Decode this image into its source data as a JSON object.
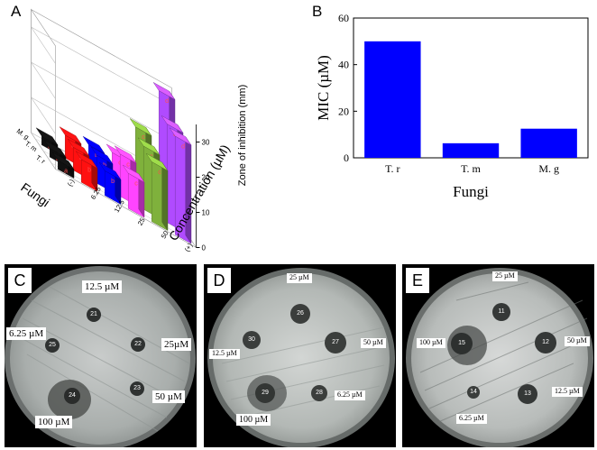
{
  "panels": {
    "A": "A",
    "B": "B",
    "C": "C",
    "D": "D",
    "E": "E"
  },
  "chart_data": [
    {
      "type": "bar",
      "panel": "A",
      "projection": "3d",
      "xlabel": "Concentration (µM)",
      "ylabel": "Fungi",
      "zlabel": "Zone of inhibition (mm)",
      "zlim": [
        0,
        35
      ],
      "z_ticks": [
        "0",
        "10",
        "20",
        "30"
      ],
      "concentration_labels": [
        "(-)",
        "6.25",
        "12.5",
        "25",
        "50",
        "(+)"
      ],
      "fungi_labels": [
        "T. r",
        "T. m",
        "M. g"
      ],
      "bar_letters": [
        "a",
        "b",
        "c",
        "d"
      ],
      "series": [
        {
          "fungi": "T. r",
          "values": [
            0,
            6.5,
            7,
            10,
            17,
            28
          ]
        },
        {
          "fungi": "T. m",
          "values": [
            0,
            6.5,
            8,
            12,
            18,
            28
          ]
        },
        {
          "fungi": "M. g",
          "values": [
            0,
            6.5,
            7.5,
            9,
            20,
            34
          ]
        }
      ]
    },
    {
      "type": "bar",
      "panel": "B",
      "categories": [
        "T. r",
        "T. m",
        "M. g"
      ],
      "values": [
        50,
        6.25,
        12.5
      ],
      "xlabel": "Fungi",
      "ylabel": "MIC (µM)",
      "ylim": [
        0,
        60
      ],
      "y_ticks": [
        "0",
        "20",
        "40",
        "60"
      ],
      "bar_color": "#0000ff"
    }
  ],
  "plates": {
    "C": {
      "labels": [
        "12.5 µM",
        "6.25 µM",
        "25µM",
        "50 µM",
        "100 µM"
      ],
      "wells": [
        "21",
        "25",
        "22",
        "23",
        "24"
      ]
    },
    "D": {
      "labels": [
        "25 µM",
        "12.5 µM",
        "50 µM",
        "6.25 µM",
        "100 µM"
      ],
      "wells": [
        "26",
        "30",
        "27",
        "29",
        "28"
      ]
    },
    "E": {
      "labels": [
        "25 µM",
        "100 µM",
        "50 µM",
        "12.5 µM",
        "6.25 µM"
      ],
      "wells": [
        "11",
        "15",
        "12",
        "14",
        "13"
      ]
    }
  },
  "colors": {
    "bar_blue": "#0000ff",
    "bar_black": "#111111",
    "bar_red": "#ff1010",
    "bar_pink": "#ff44ff",
    "bar_green": "#7fb13c",
    "bar_navy": "#1b2ba8",
    "bar_violet": "#b04bff"
  }
}
